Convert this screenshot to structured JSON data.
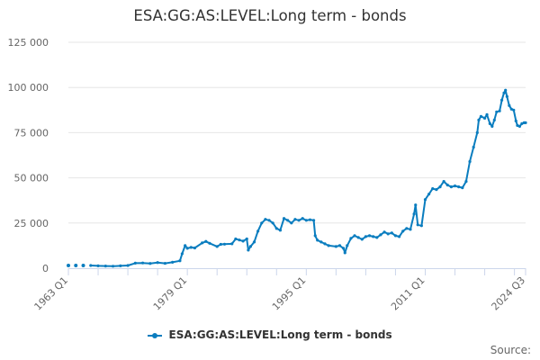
{
  "chart_data": {
    "type": "line",
    "title": "ESA:GG:AS:LEVEL:Long term - bonds",
    "xlabel": "",
    "ylabel": "",
    "ylim": [
      0,
      125000
    ],
    "y_ticks": [
      "0",
      "25 000",
      "50 000",
      "75 000",
      "100 000",
      "125 000"
    ],
    "y_tick_values": [
      0,
      25000,
      50000,
      75000,
      100000,
      125000
    ],
    "x_range": [
      1963.0,
      2024.5
    ],
    "x_ticks": [
      {
        "label": "1963 Q1",
        "year": 1963.0
      },
      {
        "label": "1979 Q1",
        "year": 1979.0
      },
      {
        "label": "1995 Q1",
        "year": 1995.0
      },
      {
        "label": "2011 Q1",
        "year": 2011.0
      },
      {
        "label": "2024 Q3",
        "year": 2024.5
      }
    ],
    "grid": "horizontal",
    "legend": "bottom-center",
    "color": "#0a7dbf",
    "isolated_points": [
      {
        "x": 1963.0,
        "y": 1500
      },
      {
        "x": 1964.0,
        "y": 1500
      },
      {
        "x": 1965.0,
        "y": 1500
      }
    ],
    "series": [
      {
        "name": "ESA:GG:AS:LEVEL:Long term - bonds",
        "points": [
          [
            1966.0,
            1500
          ],
          [
            1967.0,
            1300
          ],
          [
            1968.0,
            1200
          ],
          [
            1969.0,
            1100
          ],
          [
            1970.0,
            1300
          ],
          [
            1971.0,
            1500
          ],
          [
            1972.0,
            2800
          ],
          [
            1973.0,
            2900
          ],
          [
            1974.0,
            2600
          ],
          [
            1975.0,
            3100
          ],
          [
            1976.0,
            2700
          ],
          [
            1977.0,
            3300
          ],
          [
            1978.0,
            4100
          ],
          [
            1978.3,
            8000
          ],
          [
            1978.7,
            12500
          ],
          [
            1979.0,
            11000
          ],
          [
            1979.5,
            11500
          ],
          [
            1980.0,
            11200
          ],
          [
            1981.0,
            14000
          ],
          [
            1981.5,
            14800
          ],
          [
            1982.0,
            13800
          ],
          [
            1983.0,
            12000
          ],
          [
            1983.5,
            13200
          ],
          [
            1984.0,
            13300
          ],
          [
            1985.0,
            13500
          ],
          [
            1985.5,
            16200
          ],
          [
            1986.0,
            15600
          ],
          [
            1986.5,
            15000
          ],
          [
            1987.0,
            16200
          ],
          [
            1987.2,
            10000
          ],
          [
            1987.5,
            12000
          ],
          [
            1988.0,
            14500
          ],
          [
            1988.5,
            20500
          ],
          [
            1989.0,
            25000
          ],
          [
            1989.5,
            27000
          ],
          [
            1990.0,
            26500
          ],
          [
            1990.5,
            25000
          ],
          [
            1991.0,
            22000
          ],
          [
            1991.5,
            21000
          ],
          [
            1992.0,
            27500
          ],
          [
            1992.5,
            26500
          ],
          [
            1993.0,
            25000
          ],
          [
            1993.5,
            27000
          ],
          [
            1994.0,
            26500
          ],
          [
            1994.5,
            27500
          ],
          [
            1995.0,
            26500
          ],
          [
            1995.5,
            26800
          ],
          [
            1996.0,
            26500
          ],
          [
            1996.2,
            18000
          ],
          [
            1996.5,
            15500
          ],
          [
            1997.0,
            14500
          ],
          [
            1997.5,
            13500
          ],
          [
            1998.0,
            12500
          ],
          [
            1999.0,
            12000
          ],
          [
            1999.5,
            12500
          ],
          [
            2000.0,
            11000
          ],
          [
            2000.2,
            8500
          ],
          [
            2000.5,
            12500
          ],
          [
            2001.0,
            16500
          ],
          [
            2001.5,
            18000
          ],
          [
            2002.0,
            17000
          ],
          [
            2002.5,
            16000
          ],
          [
            2003.0,
            17500
          ],
          [
            2003.5,
            18000
          ],
          [
            2004.0,
            17500
          ],
          [
            2004.5,
            17000
          ],
          [
            2005.0,
            18500
          ],
          [
            2005.5,
            20000
          ],
          [
            2006.0,
            19000
          ],
          [
            2006.5,
            19500
          ],
          [
            2007.0,
            18000
          ],
          [
            2007.5,
            17500
          ],
          [
            2008.0,
            20500
          ],
          [
            2008.5,
            22000
          ],
          [
            2009.0,
            21500
          ],
          [
            2009.5,
            30000
          ],
          [
            2009.7,
            35000
          ],
          [
            2010.0,
            24000
          ],
          [
            2010.5,
            23500
          ],
          [
            2011.0,
            38000
          ],
          [
            2011.5,
            41000
          ],
          [
            2012.0,
            44000
          ],
          [
            2012.5,
            43500
          ],
          [
            2013.0,
            45000
          ],
          [
            2013.5,
            48000
          ],
          [
            2014.0,
            46000
          ],
          [
            2014.5,
            45000
          ],
          [
            2015.0,
            45500
          ],
          [
            2015.5,
            45000
          ],
          [
            2016.0,
            44500
          ],
          [
            2016.5,
            48000
          ],
          [
            2017.0,
            59000
          ],
          [
            2017.5,
            67000
          ],
          [
            2018.0,
            75000
          ],
          [
            2018.2,
            82000
          ],
          [
            2018.5,
            84000
          ],
          [
            2019.0,
            83000
          ],
          [
            2019.3,
            85000
          ],
          [
            2019.7,
            80000
          ],
          [
            2020.0,
            78500
          ],
          [
            2020.3,
            82000
          ],
          [
            2020.6,
            86500
          ],
          [
            2021.0,
            87000
          ],
          [
            2021.3,
            93000
          ],
          [
            2021.6,
            97000
          ],
          [
            2021.8,
            98500
          ],
          [
            2022.0,
            95000
          ],
          [
            2022.3,
            90000
          ],
          [
            2022.6,
            88000
          ],
          [
            2022.9,
            87500
          ],
          [
            2023.2,
            81500
          ],
          [
            2023.4,
            79000
          ],
          [
            2023.7,
            78500
          ],
          [
            2024.0,
            80000
          ],
          [
            2024.3,
            80500
          ],
          [
            2024.5,
            80500
          ]
        ]
      }
    ]
  },
  "legend_label": "ESA:GG:AS:LEVEL:Long term - bonds",
  "credits": "Source:"
}
